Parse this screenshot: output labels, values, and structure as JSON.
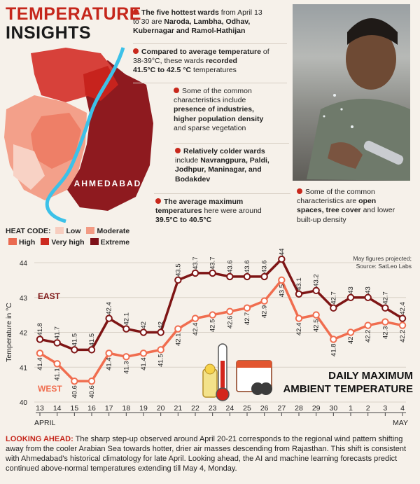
{
  "header": {
    "title_line1": "TEMPERATURE",
    "title_line2": "INSIGHTS"
  },
  "bullets": [
    {
      "lines": [
        [
          "The five hottest wards",
          " from April 13"
        ],
        [
          "to 30 are ",
          "Naroda, Lambha, Odhav,"
        ],
        [
          "Kubernagar and Ramol-Hathijan",
          ""
        ]
      ]
    },
    {
      "lines": [
        [
          "Compared to average temperature",
          " of"
        ],
        [
          "38-39°C, these wards ",
          "recorded"
        ],
        [
          "41.5°C to 42.5 °C",
          " temperatures"
        ]
      ]
    },
    {
      "lines": [
        [
          "",
          "Some of the common"
        ],
        [
          "",
          "characteristics include"
        ],
        [
          "presence of industries,",
          ""
        ],
        [
          "higher population density",
          ""
        ],
        [
          "",
          "and sparse vegetation"
        ]
      ]
    },
    {
      "lines": [
        [
          "Relatively colder wards",
          ""
        ],
        [
          "",
          "include "
        ],
        [
          "Navrangpura, Paldi,",
          ""
        ],
        [
          "Jodhpur, Maninagar, and",
          ""
        ],
        [
          "Bodakdev",
          ""
        ]
      ]
    },
    {
      "lines": [
        [
          "The average maximum",
          ""
        ],
        [
          "temperatures",
          " here were around"
        ],
        [
          "39.5°C to 40.5°C",
          ""
        ]
      ]
    },
    {
      "lines": [
        [
          "",
          "Some of the common"
        ],
        [
          "",
          "characteristics are "
        ],
        [
          "open",
          ""
        ],
        [
          "spaces, tree cover",
          " and lower"
        ],
        [
          "",
          "built-up density"
        ]
      ]
    }
  ],
  "map": {
    "city_label": "AHMEDABAD"
  },
  "heat_code": {
    "label": "HEAT CODE:",
    "items": [
      {
        "name": "Low",
        "color": "#f7cdbf"
      },
      {
        "name": "Moderate",
        "color": "#f29b84"
      },
      {
        "name": "High",
        "color": "#ea6a50"
      },
      {
        "name": "Very high",
        "color": "#cc2a20"
      },
      {
        "name": "Extreme",
        "color": "#7d1018"
      }
    ]
  },
  "chart_data": {
    "type": "line",
    "title": "DAILY MAXIMUM AMBIENT TEMPERATURE",
    "title_lines": [
      "DAILY MAXIMUM",
      "AMBIENT TEMPERATURE"
    ],
    "ylabel": "Temperature in °C",
    "ylim": [
      40,
      44
    ],
    "yticks": [
      40,
      41,
      42,
      43,
      44
    ],
    "note_lines": [
      "May figures projected;",
      "Source: SatLeo Labs"
    ],
    "categories": [
      "13",
      "14",
      "15",
      "16",
      "17",
      "18",
      "19",
      "20",
      "21",
      "22",
      "23",
      "24",
      "25",
      "26",
      "27",
      "28",
      "29",
      "30",
      "1",
      "2",
      "3",
      "4"
    ],
    "month_labels": {
      "april": "APRIL",
      "may": "MAY"
    },
    "series": [
      {
        "name": "EAST",
        "color": "#7e1515",
        "values": [
          41.8,
          41.7,
          41.5,
          41.5,
          42.4,
          42.1,
          42,
          42,
          43.5,
          43.7,
          43.7,
          43.6,
          43.6,
          43.6,
          44.1,
          43.1,
          43.2,
          42.7,
          43,
          43,
          42.7,
          42.4
        ]
      },
      {
        "name": "WEST",
        "color": "#f06d4f",
        "values": [
          41.4,
          41.1,
          40.6,
          40.6,
          41.4,
          41.3,
          41.4,
          41.5,
          42.1,
          42.4,
          42.5,
          42.6,
          42.7,
          42.9,
          43.5,
          42.4,
          42.5,
          41.8,
          42,
          42.2,
          42.3,
          42.2
        ]
      }
    ]
  },
  "footer": {
    "label": "LOOKING AHEAD:",
    "text": " The sharp step-up observed around April 20-21 corresponds to the regional wind pattern shifting away from the cooler Arabian Sea towards hotter, drier air masses descending from Rajasthan. This shift is consistent with Ahmedabad's historical climatology for late April. Looking ahead, the AI and machine learning forecasts predict continued above-normal temperatures extending till May 4, Monday."
  }
}
